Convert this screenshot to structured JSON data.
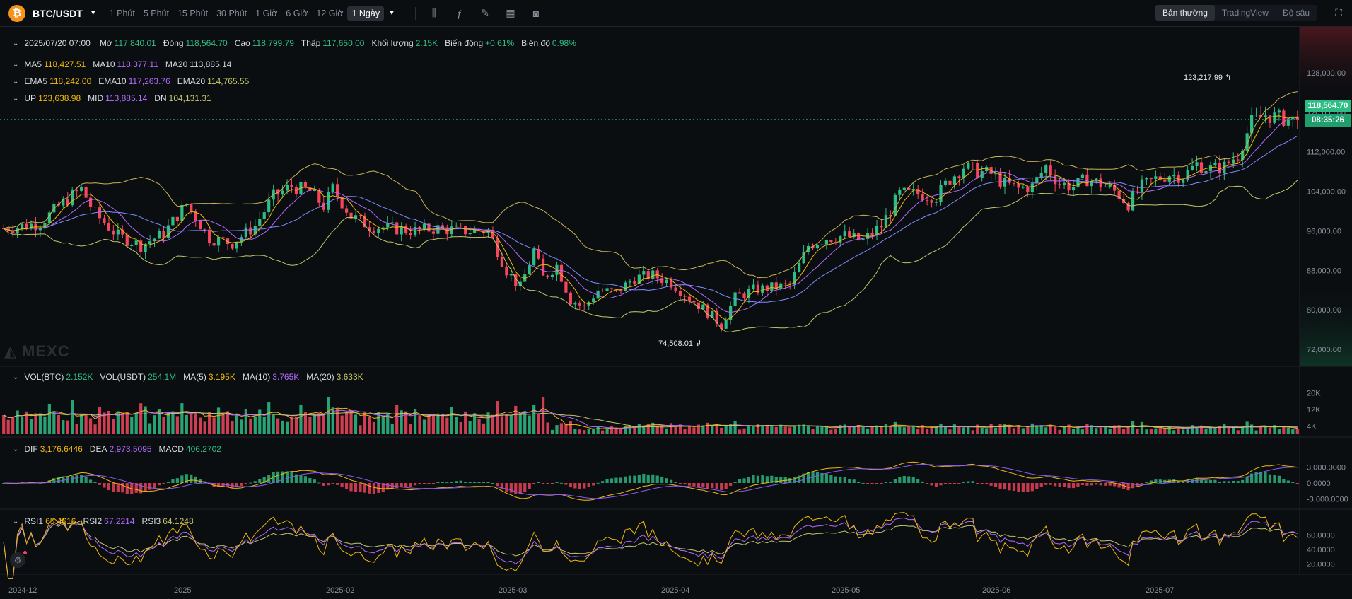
{
  "header": {
    "logo_glyph": "₿",
    "symbol": "BTC/USDT",
    "timeframes": [
      "1 Phút",
      "5 Phút",
      "15 Phút",
      "30 Phút",
      "1 Giờ",
      "6 Giờ",
      "12 Giờ"
    ],
    "active_timeframe": "1 Ngày",
    "tools": [
      "candle-settings-icon",
      "indicators-icon",
      "draw-icon",
      "layout-icon",
      "camera-icon"
    ],
    "views": [
      "Bản thường",
      "TradingView",
      "Độ sâu"
    ],
    "active_view": "Bản thường"
  },
  "ohlc": {
    "date": "2025/07/20 07:00",
    "open_label": "Mở",
    "open": "117,840.01",
    "close_label": "Đóng",
    "close": "118,564.70",
    "high_label": "Cao",
    "high": "118,799.79",
    "low_label": "Thấp",
    "low": "117,650.00",
    "volume_label": "Khối lượng",
    "volume": "2.15K",
    "change_label": "Biến động",
    "change": "+0.61%",
    "amplitude_label": "Biên độ",
    "amplitude": "0.98%"
  },
  "ma": {
    "ma5_label": "MA5",
    "ma5": "118,427.51",
    "ma10_label": "MA10",
    "ma10": "118,377.11",
    "ma20_label": "MA20",
    "ma20": "113,885.14"
  },
  "ema": {
    "ema5_label": "EMA5",
    "ema5": "118,242.00",
    "ema10_label": "EMA10",
    "ema10": "117,263.76",
    "ema20_label": "EMA20",
    "ema20": "114,765.55"
  },
  "boll": {
    "up_label": "UP",
    "up": "123,638.98",
    "mid_label": "MID",
    "mid": "113,885.14",
    "dn_label": "DN",
    "dn": "104,131.31"
  },
  "vol": {
    "label1": "VOL(BTC)",
    "v1": "2.152K",
    "label2": "VOL(USDT)",
    "v2": "254.1M",
    "ma5_label": "MA(5)",
    "ma5": "3.195K",
    "ma10_label": "MA(10)",
    "ma10": "3.765K",
    "ma20_label": "MA(20)",
    "ma20": "3.633K"
  },
  "macd": {
    "dif_label": "DIF",
    "dif": "3,176.6446",
    "dea_label": "DEA",
    "dea": "2,973.5095",
    "macd_label": "MACD",
    "macd": "406.2702"
  },
  "rsi": {
    "r1_label": "RSI1",
    "r1": "65.4616",
    "r2_label": "RSI2",
    "r2": "67.2214",
    "r3_label": "RSI3",
    "r3": "64.1248"
  },
  "last_price": "118,564.70",
  "countdown": "08:35:26",
  "watermark": "MEXC",
  "high_marker": "123,217.99",
  "low_marker": "74,508.01",
  "colors": {
    "up": "#2ebd85",
    "down": "#f6465d",
    "ma5": "#f0b90b",
    "ma10": "#b36bff",
    "ma20": "#7f8cff",
    "boll": "#c9b458",
    "dif": "#f0b90b",
    "dea": "#8b5cf6",
    "rsi1": "#f0b90b",
    "rsi2": "#b36bff",
    "rsi3": "#c3c66b"
  },
  "chart_data": {
    "type": "candlestick",
    "x_ticks": [
      "2024-12",
      "2025",
      "2025-02",
      "2025-03",
      "2025-04",
      "2025-05",
      "2025-06",
      "2025-07"
    ],
    "price_ticks": [
      "128,000.00",
      "120,000.00",
      "112,000.00",
      "104,000.00",
      "96,000.00",
      "88,000.00",
      "80,000.00",
      "72,000.00"
    ],
    "price_range": [
      70000,
      133000
    ],
    "volume_ticks": [
      "20K",
      "12K",
      "4K"
    ],
    "macd_ticks": [
      "3,000.0000",
      "0.0000",
      "-3,000.0000"
    ],
    "rsi_ticks": [
      "60.0000",
      "40.0000",
      "20.0000"
    ],
    "close_path": [
      [
        0,
        96500
      ],
      [
        8,
        97500
      ],
      [
        12,
        101000
      ],
      [
        17,
        104500
      ],
      [
        20,
        99500
      ],
      [
        25,
        95000
      ],
      [
        30,
        93000
      ],
      [
        35,
        95500
      ],
      [
        40,
        101500
      ],
      [
        45,
        94500
      ],
      [
        50,
        93500
      ],
      [
        55,
        97000
      ],
      [
        59,
        103000
      ],
      [
        63,
        105000
      ],
      [
        67,
        104000
      ],
      [
        70,
        101000
      ],
      [
        72,
        104500
      ],
      [
        76,
        99000
      ],
      [
        80,
        97000
      ],
      [
        85,
        96500
      ],
      [
        90,
        96000
      ],
      [
        95,
        96500
      ],
      [
        100,
        96000
      ],
      [
        106,
        96000
      ],
      [
        110,
        88000
      ],
      [
        113,
        84500
      ],
      [
        116,
        92000
      ],
      [
        118,
        86500
      ],
      [
        121,
        89000
      ],
      [
        124,
        82000
      ],
      [
        127,
        80500
      ],
      [
        130,
        84000
      ],
      [
        134,
        83500
      ],
      [
        138,
        86500
      ],
      [
        142,
        87000
      ],
      [
        146,
        85500
      ],
      [
        150,
        82500
      ],
      [
        154,
        79500
      ],
      [
        157,
        77000
      ],
      [
        160,
        82500
      ],
      [
        164,
        84000
      ],
      [
        168,
        84500
      ],
      [
        172,
        85000
      ],
      [
        176,
        93000
      ],
      [
        180,
        94500
      ],
      [
        184,
        95000
      ],
      [
        188,
        94000
      ],
      [
        192,
        97000
      ],
      [
        196,
        103500
      ],
      [
        200,
        103500
      ],
      [
        204,
        103000
      ],
      [
        207,
        106500
      ],
      [
        210,
        109000
      ],
      [
        213,
        108000
      ],
      [
        216,
        107500
      ],
      [
        219,
        105500
      ],
      [
        222,
        104500
      ],
      [
        225,
        105000
      ],
      [
        228,
        109000
      ],
      [
        231,
        105500
      ],
      [
        234,
        105000
      ],
      [
        237,
        106500
      ],
      [
        240,
        105500
      ],
      [
        243,
        104000
      ],
      [
        246,
        101500
      ],
      [
        249,
        105000
      ],
      [
        252,
        106500
      ],
      [
        255,
        107500
      ],
      [
        258,
        107000
      ],
      [
        261,
        109500
      ],
      [
        264,
        108500
      ],
      [
        267,
        109000
      ],
      [
        270,
        111500
      ],
      [
        273,
        118000
      ],
      [
        276,
        119500
      ],
      [
        279,
        118800
      ],
      [
        282,
        118500
      ]
    ],
    "last_close": 118564.7,
    "series_current": {
      "MA5": 118427.51,
      "MA10": 118377.11,
      "MA20": 113885.14,
      "UP": 123638.98,
      "MID": 113885.14,
      "DN": 104131.31
    },
    "extremes": {
      "high": 123217.99,
      "low": 74508.01
    }
  }
}
